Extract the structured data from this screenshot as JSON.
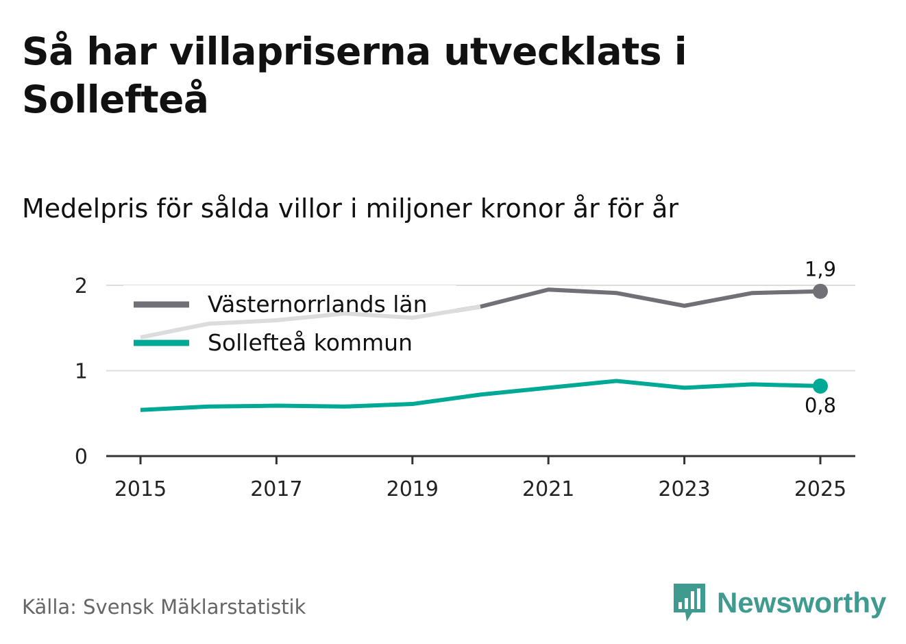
{
  "title": "Så har villapriserna utvecklats i Sollefteå",
  "subtitle": "Medelpris för sålda villor i miljoner kronor år för år",
  "source": "Källa: Svensk Mäklarstatistik",
  "brand": {
    "name": "Newsworthy",
    "icon": "bar-chart-speech-bubble-icon"
  },
  "colors": {
    "lan": "#717077",
    "lan_faded": "#dcdcde",
    "kommun": "#00a896",
    "grid": "#dddddd",
    "axis": "#333333",
    "brand": "#3f9a8f"
  },
  "chart_data": {
    "type": "line",
    "x": [
      2015,
      2016,
      2017,
      2018,
      2019,
      2020,
      2021,
      2022,
      2023,
      2024,
      2025
    ],
    "x_ticks": [
      "2015",
      "2017",
      "2019",
      "2021",
      "2023",
      "2025"
    ],
    "y_ticks": [
      "0",
      "1",
      "2"
    ],
    "ylim": [
      0,
      2
    ],
    "xlabel": "",
    "ylabel": "",
    "legend_position": "top-left",
    "series": [
      {
        "name": "Västernorrlands län",
        "values": [
          1.39,
          1.55,
          1.59,
          1.67,
          1.62,
          1.75,
          1.95,
          1.91,
          1.76,
          1.91,
          1.93
        ],
        "end_label": "1,9"
      },
      {
        "name": "Sollefteå kommun",
        "values": [
          0.54,
          0.58,
          0.59,
          0.58,
          0.61,
          0.72,
          0.8,
          0.88,
          0.8,
          0.84,
          0.82
        ],
        "end_label": "0,8"
      }
    ]
  }
}
